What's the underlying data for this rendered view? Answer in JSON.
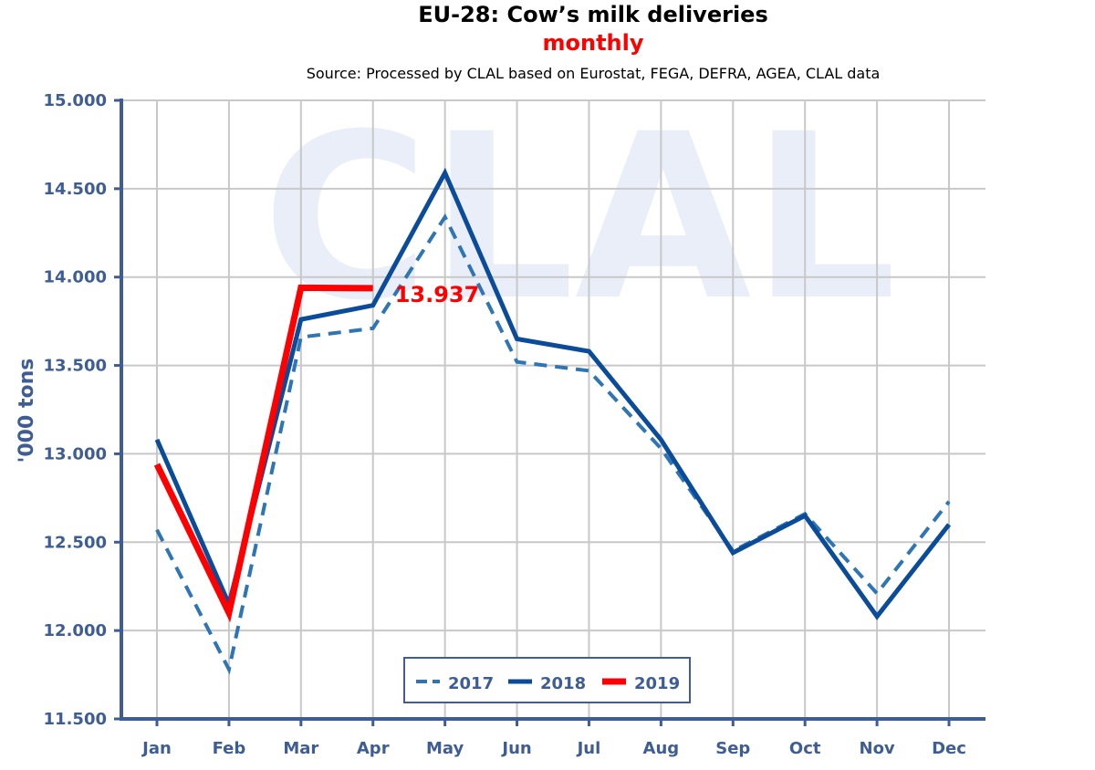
{
  "chart_data": {
    "type": "line",
    "title": "EU-28: Cow’s milk deliveries",
    "subtitle": "monthly",
    "source": "Source: Processed by CLAL based on Eurostat, FEGA, DEFRA, AGEA, CLAL data",
    "watermark": "CLAL",
    "ylabel": "'000 tons",
    "xlabel": "",
    "ylim": [
      11500,
      15000
    ],
    "y_ticks": [
      11500,
      12000,
      12500,
      13000,
      13500,
      14000,
      14500,
      15000
    ],
    "y_tick_labels": [
      "11.500",
      "12.000",
      "12.500",
      "13.000",
      "13.500",
      "14.000",
      "14.500",
      "15.000"
    ],
    "categories": [
      "Jan",
      "Feb",
      "Mar",
      "Apr",
      "May",
      "Jun",
      "Jul",
      "Aug",
      "Sep",
      "Oct",
      "Nov",
      "Dec"
    ],
    "grid": true,
    "legend_position": "bottom-center",
    "series": [
      {
        "name": "2017",
        "style": "dashed",
        "color": "#2E75B6",
        "values": [
          12570,
          11780,
          13660,
          13710,
          14340,
          13520,
          13470,
          13030,
          12450,
          12660,
          12210,
          12730
        ]
      },
      {
        "name": "2018",
        "style": "solid",
        "color": "#0B4C9A",
        "values": [
          13080,
          12150,
          13760,
          13840,
          14590,
          13650,
          13580,
          13080,
          12440,
          12650,
          12080,
          12600
        ]
      },
      {
        "name": "2019",
        "style": "solid-thick",
        "color": "#FF0000",
        "values": [
          12940,
          12100,
          13940,
          13937,
          null,
          null,
          null,
          null,
          null,
          null,
          null,
          null
        ]
      }
    ],
    "annotations": [
      {
        "text": "13.937",
        "series": "2019",
        "category": "Apr",
        "color": "#FF0000"
      }
    ]
  },
  "colors": {
    "axis": "#3F5D95",
    "grid": "#C8C8C8",
    "watermark": "#E9EEF8",
    "title": "#000000",
    "subtitle": "#FF0000"
  }
}
